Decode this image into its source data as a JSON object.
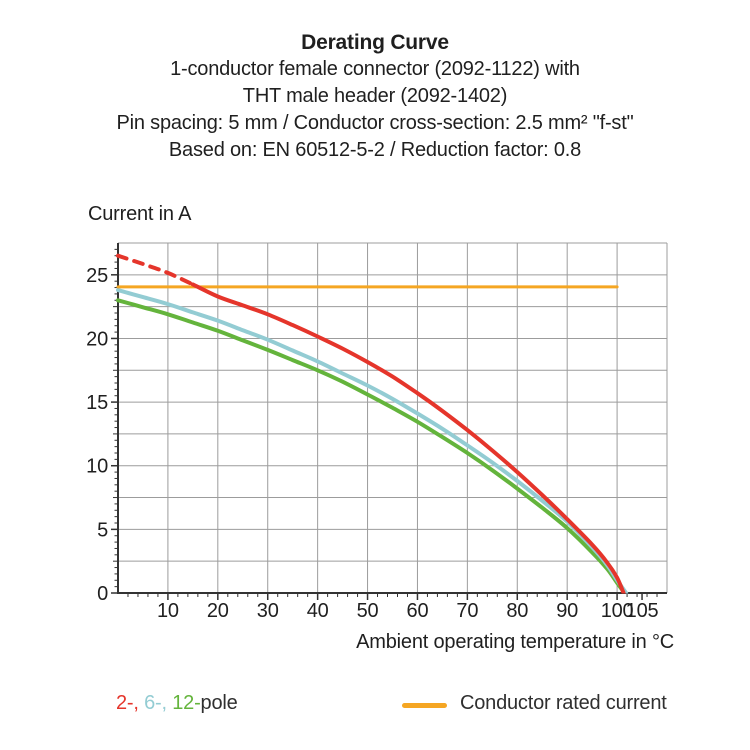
{
  "header": {
    "title": "Derating Curve",
    "subtitle_lines": [
      "1-conductor female connector (2092-1122) with",
      "THT male header (2092-1402)",
      "Pin spacing: 5 mm / Conductor cross-section: 2.5 mm² \"f-st\"",
      "Based on: EN 60512-5-2 / Reduction factor: 0.8"
    ]
  },
  "chart_data": {
    "type": "line",
    "title": "Derating Curve",
    "xlabel": "Ambient operating temperature in °C",
    "ylabel": "Current in A",
    "xlim": [
      0,
      110
    ],
    "ylim": [
      0,
      27.5
    ],
    "x_major_ticks": [
      10,
      20,
      30,
      40,
      50,
      60,
      70,
      80,
      90,
      100,
      105
    ],
    "x_minor_step": 2,
    "y_major_ticks": [
      0,
      5,
      10,
      15,
      20,
      25
    ],
    "y_minor_step": 0.5,
    "grid": {
      "x_step": 10,
      "x_max": 100,
      "y_step": 2.5,
      "y_max": 25,
      "color": "#9c9c9c"
    },
    "axis_color": "#333333",
    "legend_position": "bottom",
    "series": [
      {
        "name": "12-pole",
        "color": "#64b43c",
        "width": 4,
        "points": [
          [
            0,
            23.0
          ],
          [
            5,
            22.45
          ],
          [
            10,
            21.9
          ],
          [
            15,
            21.25
          ],
          [
            20,
            20.6
          ],
          [
            25,
            19.85
          ],
          [
            30,
            19.1
          ],
          [
            35,
            18.3
          ],
          [
            40,
            17.5
          ],
          [
            45,
            16.6
          ],
          [
            50,
            15.6
          ],
          [
            55,
            14.55
          ],
          [
            60,
            13.45
          ],
          [
            65,
            12.25
          ],
          [
            70,
            11.0
          ],
          [
            75,
            9.65
          ],
          [
            80,
            8.2
          ],
          [
            85,
            6.7
          ],
          [
            90,
            5.1
          ],
          [
            95,
            3.2
          ],
          [
            98,
            1.9
          ],
          [
            100,
            0.8
          ],
          [
            101.5,
            0
          ]
        ]
      },
      {
        "name": "6-pole",
        "color": "#93ccd3",
        "width": 4,
        "points": [
          [
            0,
            23.8
          ],
          [
            5,
            23.25
          ],
          [
            10,
            22.7
          ],
          [
            15,
            22.05
          ],
          [
            20,
            21.4
          ],
          [
            25,
            20.65
          ],
          [
            30,
            19.9
          ],
          [
            35,
            19.05
          ],
          [
            40,
            18.2
          ],
          [
            45,
            17.25
          ],
          [
            50,
            16.3
          ],
          [
            55,
            15.25
          ],
          [
            60,
            14.1
          ],
          [
            65,
            12.9
          ],
          [
            70,
            11.6
          ],
          [
            75,
            10.25
          ],
          [
            80,
            8.8
          ],
          [
            85,
            7.25
          ],
          [
            90,
            5.6
          ],
          [
            95,
            3.6
          ],
          [
            98,
            2.2
          ],
          [
            100,
            1.0
          ],
          [
            101.8,
            0
          ]
        ]
      },
      {
        "name": "Conductor rated current",
        "color": "#f5a623",
        "width": 3,
        "points": [
          [
            0,
            24.05
          ],
          [
            100,
            24.05
          ]
        ]
      },
      {
        "name": "2-pole",
        "color": "#e5352b",
        "width": 4,
        "dashed_points": [
          [
            0,
            26.5
          ],
          [
            5,
            25.85
          ],
          [
            10,
            25.15
          ],
          [
            15,
            24.25
          ]
        ],
        "points": [
          [
            15,
            24.25
          ],
          [
            20,
            23.3
          ],
          [
            25,
            22.6
          ],
          [
            30,
            21.9
          ],
          [
            35,
            21.05
          ],
          [
            40,
            20.15
          ],
          [
            45,
            19.2
          ],
          [
            50,
            18.15
          ],
          [
            55,
            17.0
          ],
          [
            60,
            15.7
          ],
          [
            65,
            14.3
          ],
          [
            70,
            12.8
          ],
          [
            75,
            11.2
          ],
          [
            80,
            9.5
          ],
          [
            85,
            7.7
          ],
          [
            90,
            5.8
          ],
          [
            95,
            3.8
          ],
          [
            98,
            2.4
          ],
          [
            100,
            1.2
          ],
          [
            101.3,
            0
          ]
        ]
      }
    ]
  },
  "legend": {
    "pole_items": [
      {
        "label": "2-,",
        "color": "#e5352b"
      },
      {
        "label": "6-,",
        "color": "#93ccd3"
      },
      {
        "label": "12-",
        "color": "#64b43c"
      }
    ],
    "pole_suffix": "pole",
    "rated_label": "Conductor rated current",
    "rated_color": "#f5a623"
  }
}
